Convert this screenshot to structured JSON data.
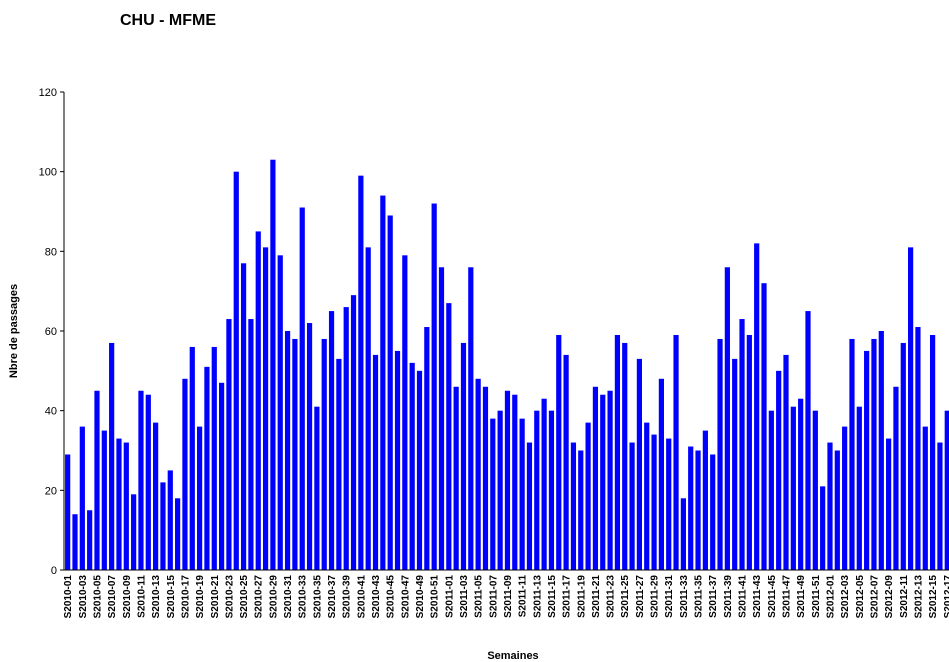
{
  "chart_data": {
    "type": "bar",
    "title": "CHU - MFME",
    "x_label": "Semaines",
    "y_label": "Nbre de passages",
    "color": "#0000ff",
    "ylim": [
      0,
      120
    ],
    "yticks": [
      0,
      20,
      40,
      60,
      80,
      100,
      120
    ],
    "categories": [
      "S2010-01",
      null,
      "S2010-03",
      null,
      "S2010-05",
      null,
      "S2010-07",
      null,
      "S2010-09",
      null,
      "S2010-11",
      null,
      "S2010-13",
      null,
      "S2010-15",
      null,
      "S2010-17",
      null,
      "S2010-19",
      null,
      "S2010-21",
      null,
      "S2010-23",
      null,
      "S2010-25",
      null,
      "S2010-27",
      null,
      "S2010-29",
      null,
      "S2010-31",
      null,
      "S2010-33",
      null,
      "S2010-35",
      null,
      "S2010-37",
      null,
      "S2010-39",
      null,
      "S2010-41",
      null,
      "S2010-43",
      null,
      "S2010-45",
      null,
      "S2010-47",
      null,
      "S2010-49",
      null,
      "S2010-51",
      null,
      "S2011-01",
      null,
      "S2011-03",
      null,
      "S2011-05",
      null,
      "S2011-07",
      null,
      "S2011-09",
      null,
      "S2011-11",
      null,
      "S2011-13",
      null,
      "S2011-15",
      null,
      "S2011-17",
      null,
      "S2011-19",
      null,
      "S2011-21",
      null,
      "S2011-23",
      null,
      "S2011-25",
      null,
      "S2011-27",
      null,
      "S2011-29",
      null,
      "S2011-31",
      null,
      "S2011-33",
      null,
      "S2011-35",
      null,
      "S2011-37",
      null,
      "S2011-39",
      null,
      "S2011-41",
      null,
      "S2011-43",
      null,
      "S2011-45",
      null,
      "S2011-47",
      null,
      "S2011-49",
      null,
      "S2011-51",
      null,
      "S2012-01",
      null,
      "S2012-03",
      null,
      "S2012-05",
      null,
      "S2012-07",
      null,
      "S2012-09",
      null,
      "S2012-11",
      null,
      "S2012-13",
      null,
      "S2012-15",
      null,
      "S2012-17"
    ],
    "values": [
      29,
      14,
      36,
      15,
      45,
      35,
      57,
      33,
      32,
      19,
      45,
      44,
      37,
      22,
      25,
      18,
      48,
      56,
      36,
      51,
      56,
      47,
      63,
      100,
      77,
      63,
      85,
      81,
      103,
      79,
      60,
      58,
      91,
      62,
      41,
      58,
      65,
      53,
      66,
      69,
      99,
      81,
      54,
      94,
      89,
      55,
      79,
      52,
      50,
      61,
      92,
      76,
      67,
      46,
      57,
      76,
      48,
      46,
      38,
      40,
      45,
      44,
      38,
      32,
      40,
      43,
      40,
      59,
      54,
      32,
      30,
      37,
      46,
      44,
      45,
      59,
      57,
      32,
      53,
      37,
      34,
      48,
      33,
      59,
      18,
      31,
      30,
      35,
      29,
      58,
      76,
      53,
      63,
      59,
      82,
      72,
      40,
      50,
      54,
      41,
      43,
      65,
      40,
      21,
      32,
      30,
      36,
      58,
      41,
      55,
      58,
      60,
      33,
      46,
      57,
      81,
      61,
      36,
      59,
      32,
      40
    ]
  }
}
